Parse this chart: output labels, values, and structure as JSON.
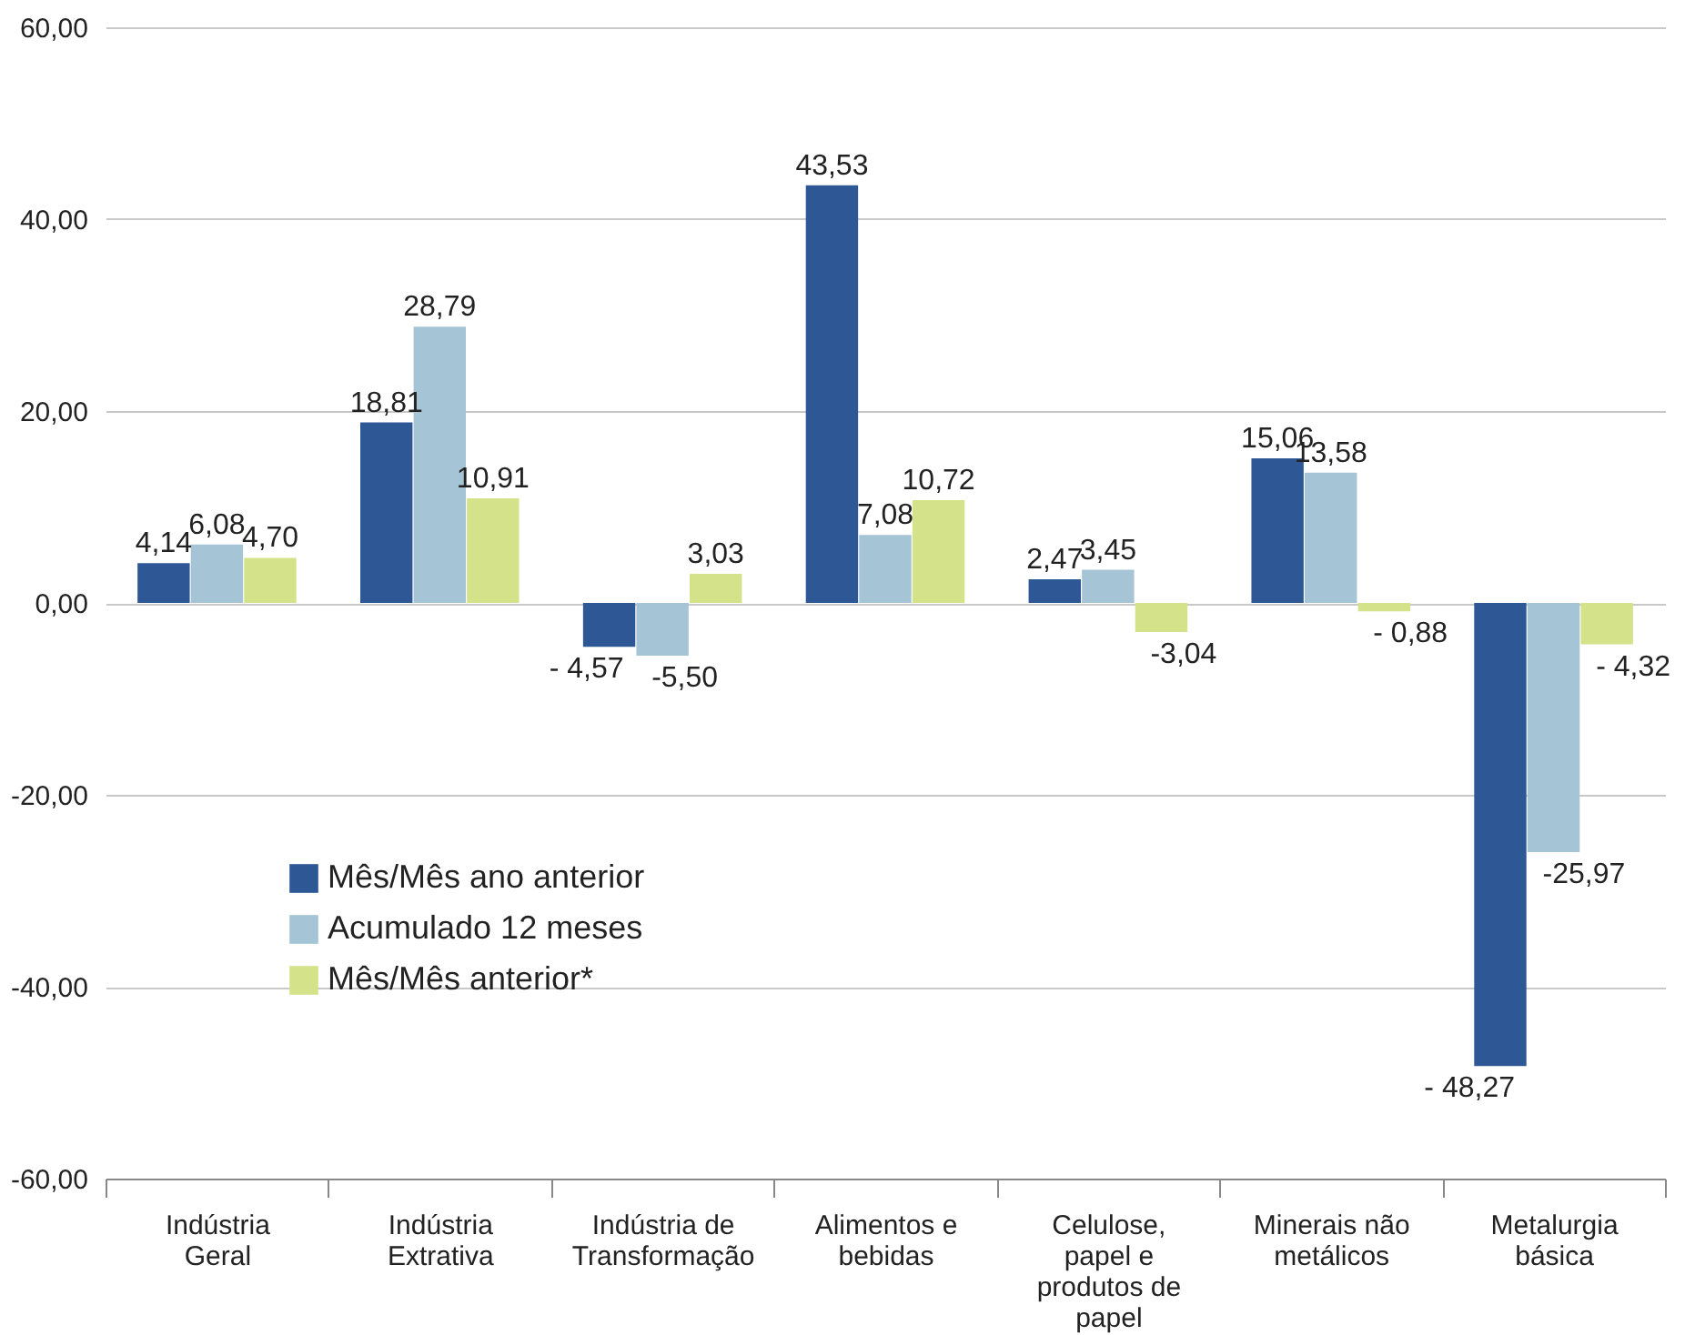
{
  "chart_data": {
    "type": "bar",
    "categories": [
      "Indústria Geral",
      "Indústria Extrativa",
      "Indústria de Transformação",
      "Alimentos e bebidas",
      "Celulose, papel e produtos de papel",
      "Minerais não metálicos",
      "Metalurgia básica"
    ],
    "series": [
      {
        "name": "Mês/Mês ano anterior",
        "color": "#2e5895",
        "values": [
          4.14,
          18.81,
          -4.57,
          43.53,
          2.47,
          15.06,
          -48.27
        ],
        "value_labels": [
          "4,14",
          "18,81",
          "- 4,57",
          "43,53",
          "2,47",
          "15,06",
          "- 48,27"
        ]
      },
      {
        "name": "Acumulado 12 meses",
        "color": "#a5c4d6",
        "values": [
          6.08,
          28.79,
          -5.5,
          7.08,
          3.45,
          13.58,
          -25.97
        ],
        "value_labels": [
          "6,08",
          "28,79",
          "-5,50",
          "7,08",
          "3,45",
          "13,58",
          "-25,97"
        ]
      },
      {
        "name": "Mês/Mês anterior*",
        "color": "#d4e38a",
        "values": [
          4.7,
          10.91,
          3.03,
          10.72,
          -3.04,
          -0.88,
          -4.32
        ],
        "value_labels": [
          "4,70",
          "10,91",
          "3,03",
          "10,72",
          "-3,04",
          "- 0,88",
          "- 4,32"
        ]
      }
    ],
    "ylim": [
      -60,
      60
    ],
    "yticks": [
      {
        "value": -60,
        "label": "-60,00"
      },
      {
        "value": -40,
        "label": "-40,00"
      },
      {
        "value": -20,
        "label": "-20,00"
      },
      {
        "value": 0,
        "label": "0,00"
      },
      {
        "value": 20,
        "label": "20,00"
      },
      {
        "value": 40,
        "label": "40,00"
      },
      {
        "value": 60,
        "label": "60,00"
      }
    ],
    "grid": "y",
    "legend": "bottom left"
  }
}
